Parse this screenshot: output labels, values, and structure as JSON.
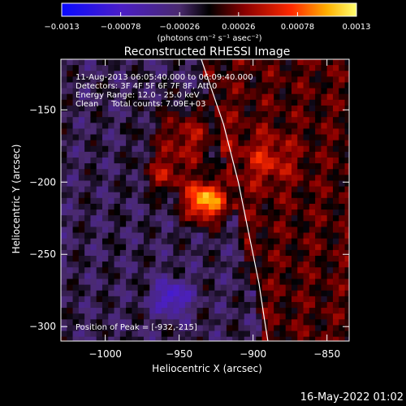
{
  "chart_data": {
    "type": "heatmap",
    "title": "Reconstructed RHESSI Image",
    "xlabel": "Heliocentric X (arcsec)",
    "ylabel": "Heliocentric Y (arcsec)",
    "xlim": [
      -1030,
      -835
    ],
    "ylim": [
      -310,
      -115
    ],
    "x_ticks": [
      -1000,
      -950,
      -900,
      -850
    ],
    "x_tick_labels": [
      "−1000",
      "−950",
      "−900",
      "−850"
    ],
    "y_ticks": [
      -150,
      -200,
      -250,
      -300
    ],
    "y_tick_labels": [
      "−150",
      "−200",
      "−250",
      "−300"
    ],
    "colorbar": {
      "range": [
        -0.0013,
        0.0013
      ],
      "ticks": [
        -0.0013,
        -0.00078,
        -0.00026,
        0.00026,
        0.00078,
        0.0013
      ],
      "tick_labels": [
        "−0.0013",
        "−0.00078",
        "−0.00026",
        "0.00026",
        "0.00078",
        "0.0013"
      ],
      "units_label": "(photons cm⁻² s⁻¹ asec⁻²)"
    },
    "peak": {
      "x": -932,
      "y": -215
    },
    "sources": [
      {
        "x": -932,
        "y": -213,
        "sigma": 10,
        "amp": 1.0
      },
      {
        "x": -945,
        "y": -170,
        "sigma": 15,
        "amp": 0.45
      },
      {
        "x": -960,
        "y": -195,
        "sigma": 9,
        "amp": 0.4
      },
      {
        "x": -890,
        "y": -185,
        "sigma": 12,
        "amp": 0.3
      },
      {
        "x": -955,
        "y": -280,
        "sigma": 8,
        "amp": -0.55
      }
    ],
    "limb": [
      [
        -935,
        -115
      ],
      [
        -920,
        -160
      ],
      [
        -910,
        -200
      ],
      [
        -902,
        -240
      ],
      [
        -896,
        -270
      ],
      [
        -892,
        -297
      ],
      [
        -890,
        -310
      ]
    ],
    "colors": {
      "background": "#000000",
      "limb": "#ffffff"
    }
  },
  "annotations": {
    "time_range": "11-Aug-2013 06:05:40.000 to 06:09:40.000",
    "detectors": "Detectors: 3F 4F 5F 6F 7F 8F, Att 0",
    "energy": "Energy Range: 12.0 - 25.0 keV",
    "clean": "Clean     Total counts: 7.09E+03",
    "peak_text": "Position of Peak = [-932,-215]"
  },
  "footer": {
    "date": "16-May-2022 01:02"
  }
}
